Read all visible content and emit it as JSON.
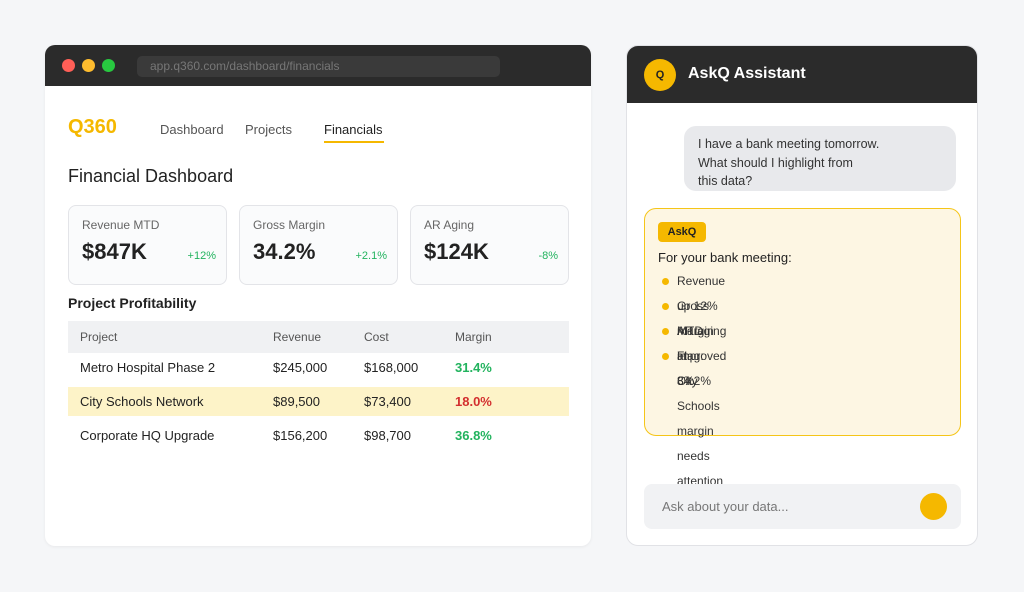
{
  "browser": {
    "url": "app.q360.com/dashboard/financials"
  },
  "dashboard": {
    "logo": "Q360",
    "nav": [
      "Dashboard",
      "Projects",
      "Financials"
    ],
    "title": "Financial Dashboard",
    "cards": [
      {
        "label": "Revenue MTD",
        "value": "$847K",
        "change": "+12%"
      },
      {
        "label": "Gross Margin",
        "value": "34.2%",
        "change": "+2.1%"
      },
      {
        "label": "AR Aging",
        "value": "$124K",
        "change": "-8%"
      }
    ],
    "table": {
      "title": "Project Profitability",
      "header": [
        "Project",
        "Revenue",
        "Cost",
        "Margin"
      ],
      "rows": [
        [
          "Metro Hospital Phase 2",
          "$245,000",
          "$168,000",
          "31.4%"
        ],
        [
          "City Schools Network",
          "$89,500",
          "$73,400",
          "18.0%"
        ],
        [
          "Corporate HQ Upgrade",
          "$156,200",
          "$98,700",
          "36.8%"
        ]
      ]
    }
  },
  "assistant": {
    "avatar": "Q",
    "title": "AskQ Assistant",
    "user_message": "I have a bank meeting tomorrow.\nWhat should I highlight from\nthis data?",
    "reply": {
      "badge": "AskQ",
      "heading": "For your bank meeting:",
      "items": [
        "Revenue up 12% MTD",
        "Gross margin at 34.2%",
        "AR aging improved 8%",
        "Flag: City Schools margin\nneeds attention"
      ]
    },
    "input_placeholder": "Ask about your data..."
  }
}
